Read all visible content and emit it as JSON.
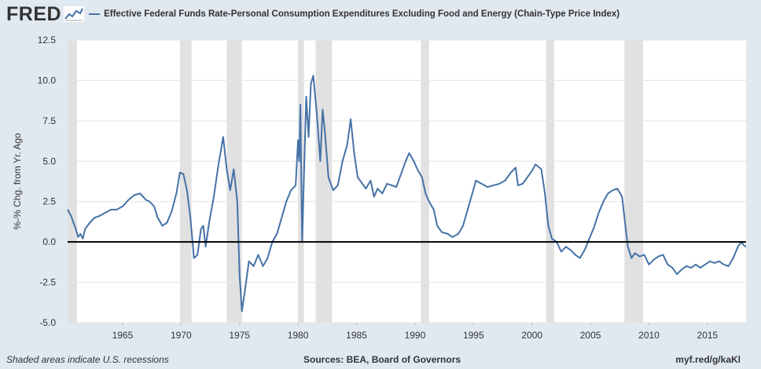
{
  "header": {
    "logo_text": "FRED",
    "logo_mark": "chart-line-icon"
  },
  "footer": {
    "recession_note": "Shaded areas indicate U.S. recessions",
    "sources": "Sources: BEA, Board of Governors",
    "short_url": "myf.red/g/kaKl"
  },
  "colors": {
    "background": "#e1e9f0",
    "plot_background": "#ffffff",
    "series_line": "#4572a7",
    "recession_shading": "#e1e1e1",
    "zero_line": "#000000",
    "gridline": "#e4e4e4"
  },
  "chart_data": {
    "type": "line",
    "title": "",
    "xlabel": "",
    "ylabel": "%-% Chg. from Yr. Ago",
    "xlim": [
      1960.3,
      2018.3
    ],
    "ylim": [
      -5.0,
      12.5
    ],
    "grid": "horizontal",
    "legend_position": "top-left",
    "y_ticks": [
      "12.5",
      "10.0",
      "7.5",
      "5.0",
      "2.5",
      "0.0",
      "-2.5",
      "-5.0"
    ],
    "x_ticks": [
      "1965",
      "1970",
      "1975",
      "1980",
      "1985",
      "1990",
      "1995",
      "2000",
      "2005",
      "2010",
      "2015"
    ],
    "recessions": [
      [
        1960.3,
        1961.1
      ],
      [
        1969.9,
        1970.9
      ],
      [
        1973.9,
        1975.2
      ],
      [
        1980.0,
        1980.5
      ],
      [
        1981.5,
        1982.9
      ],
      [
        1990.5,
        1991.2
      ],
      [
        2001.2,
        2001.9
      ],
      [
        2007.9,
        2009.5
      ]
    ],
    "series": [
      {
        "name": "Effective Federal Funds Rate-Personal Consumption Expenditures Excluding Food and Energy (Chain-Type Price Index)",
        "points": [
          [
            1960.3,
            2.0
          ],
          [
            1960.6,
            1.6
          ],
          [
            1961.0,
            0.8
          ],
          [
            1961.2,
            0.3
          ],
          [
            1961.4,
            0.5
          ],
          [
            1961.6,
            0.2
          ],
          [
            1961.8,
            0.8
          ],
          [
            1962.2,
            1.2
          ],
          [
            1962.6,
            1.5
          ],
          [
            1963.0,
            1.6
          ],
          [
            1963.5,
            1.8
          ],
          [
            1964.0,
            2.0
          ],
          [
            1964.5,
            2.0
          ],
          [
            1965.0,
            2.2
          ],
          [
            1965.5,
            2.6
          ],
          [
            1966.0,
            2.9
          ],
          [
            1966.5,
            3.0
          ],
          [
            1967.0,
            2.6
          ],
          [
            1967.3,
            2.5
          ],
          [
            1967.7,
            2.2
          ],
          [
            1968.0,
            1.5
          ],
          [
            1968.4,
            1.0
          ],
          [
            1968.8,
            1.2
          ],
          [
            1969.2,
            1.9
          ],
          [
            1969.6,
            3.0
          ],
          [
            1969.9,
            4.3
          ],
          [
            1970.2,
            4.2
          ],
          [
            1970.5,
            3.2
          ],
          [
            1970.8,
            1.5
          ],
          [
            1971.1,
            -1.0
          ],
          [
            1971.4,
            -0.8
          ],
          [
            1971.7,
            0.8
          ],
          [
            1971.9,
            1.0
          ],
          [
            1972.1,
            -0.3
          ],
          [
            1972.4,
            1.2
          ],
          [
            1972.8,
            2.8
          ],
          [
            1973.2,
            4.8
          ],
          [
            1973.6,
            6.5
          ],
          [
            1973.9,
            4.5
          ],
          [
            1974.2,
            3.2
          ],
          [
            1974.5,
            4.5
          ],
          [
            1974.8,
            2.5
          ],
          [
            1975.0,
            -2.0
          ],
          [
            1975.2,
            -4.3
          ],
          [
            1975.5,
            -2.8
          ],
          [
            1975.8,
            -1.2
          ],
          [
            1976.2,
            -1.5
          ],
          [
            1976.6,
            -0.8
          ],
          [
            1977.0,
            -1.5
          ],
          [
            1977.4,
            -1.0
          ],
          [
            1977.8,
            0.0
          ],
          [
            1978.2,
            0.5
          ],
          [
            1978.6,
            1.5
          ],
          [
            1979.0,
            2.5
          ],
          [
            1979.4,
            3.2
          ],
          [
            1979.8,
            3.5
          ],
          [
            1980.0,
            6.3
          ],
          [
            1980.1,
            5.0
          ],
          [
            1980.2,
            8.5
          ],
          [
            1980.35,
            0.0
          ],
          [
            1980.5,
            4.0
          ],
          [
            1980.7,
            9.0
          ],
          [
            1980.9,
            6.5
          ],
          [
            1981.1,
            9.8
          ],
          [
            1981.3,
            10.3
          ],
          [
            1981.6,
            8.0
          ],
          [
            1981.9,
            5.0
          ],
          [
            1982.1,
            8.2
          ],
          [
            1982.3,
            6.8
          ],
          [
            1982.6,
            4.0
          ],
          [
            1983.0,
            3.2
          ],
          [
            1983.4,
            3.5
          ],
          [
            1983.8,
            5.0
          ],
          [
            1984.2,
            6.0
          ],
          [
            1984.5,
            7.6
          ],
          [
            1984.8,
            5.5
          ],
          [
            1985.1,
            4.0
          ],
          [
            1985.4,
            3.7
          ],
          [
            1985.8,
            3.3
          ],
          [
            1986.2,
            3.8
          ],
          [
            1986.5,
            2.8
          ],
          [
            1986.8,
            3.3
          ],
          [
            1987.2,
            3.0
          ],
          [
            1987.6,
            3.6
          ],
          [
            1988.0,
            3.5
          ],
          [
            1988.4,
            3.4
          ],
          [
            1988.8,
            4.2
          ],
          [
            1989.2,
            5.0
          ],
          [
            1989.5,
            5.5
          ],
          [
            1989.9,
            5.0
          ],
          [
            1990.2,
            4.5
          ],
          [
            1990.6,
            4.0
          ],
          [
            1990.9,
            3.0
          ],
          [
            1991.2,
            2.5
          ],
          [
            1991.6,
            2.0
          ],
          [
            1991.9,
            1.0
          ],
          [
            1992.3,
            0.6
          ],
          [
            1992.8,
            0.5
          ],
          [
            1993.2,
            0.3
          ],
          [
            1993.7,
            0.5
          ],
          [
            1994.1,
            1.0
          ],
          [
            1994.5,
            2.0
          ],
          [
            1994.9,
            3.0
          ],
          [
            1995.2,
            3.8
          ],
          [
            1995.7,
            3.6
          ],
          [
            1996.2,
            3.4
          ],
          [
            1996.7,
            3.5
          ],
          [
            1997.2,
            3.6
          ],
          [
            1997.7,
            3.8
          ],
          [
            1998.2,
            4.3
          ],
          [
            1998.6,
            4.6
          ],
          [
            1998.8,
            3.5
          ],
          [
            1999.2,
            3.6
          ],
          [
            1999.6,
            4.0
          ],
          [
            2000.0,
            4.4
          ],
          [
            2000.3,
            4.8
          ],
          [
            2000.8,
            4.5
          ],
          [
            2001.1,
            3.0
          ],
          [
            2001.4,
            1.0
          ],
          [
            2001.7,
            0.2
          ],
          [
            2002.1,
            0.0
          ],
          [
            2002.5,
            -0.6
          ],
          [
            2002.9,
            -0.3
          ],
          [
            2003.3,
            -0.5
          ],
          [
            2003.7,
            -0.8
          ],
          [
            2004.1,
            -1.0
          ],
          [
            2004.5,
            -0.5
          ],
          [
            2004.9,
            0.2
          ],
          [
            2005.3,
            0.9
          ],
          [
            2005.7,
            1.8
          ],
          [
            2006.1,
            2.5
          ],
          [
            2006.5,
            3.0
          ],
          [
            2006.9,
            3.2
          ],
          [
            2007.3,
            3.3
          ],
          [
            2007.7,
            2.8
          ],
          [
            2007.9,
            1.5
          ],
          [
            2008.2,
            -0.3
          ],
          [
            2008.5,
            -1.0
          ],
          [
            2008.8,
            -0.7
          ],
          [
            2009.2,
            -0.9
          ],
          [
            2009.6,
            -0.8
          ],
          [
            2010.0,
            -1.4
          ],
          [
            2010.4,
            -1.1
          ],
          [
            2010.8,
            -0.9
          ],
          [
            2011.2,
            -0.8
          ],
          [
            2011.6,
            -1.4
          ],
          [
            2012.0,
            -1.6
          ],
          [
            2012.4,
            -2.0
          ],
          [
            2012.8,
            -1.7
          ],
          [
            2013.2,
            -1.5
          ],
          [
            2013.6,
            -1.6
          ],
          [
            2014.0,
            -1.4
          ],
          [
            2014.4,
            -1.6
          ],
          [
            2014.8,
            -1.4
          ],
          [
            2015.2,
            -1.2
          ],
          [
            2015.6,
            -1.3
          ],
          [
            2016.0,
            -1.2
          ],
          [
            2016.4,
            -1.4
          ],
          [
            2016.8,
            -1.5
          ],
          [
            2017.2,
            -1.0
          ],
          [
            2017.6,
            -0.3
          ],
          [
            2017.9,
            0.0
          ],
          [
            2018.1,
            -0.2
          ],
          [
            2018.3,
            -0.3
          ]
        ]
      }
    ]
  }
}
